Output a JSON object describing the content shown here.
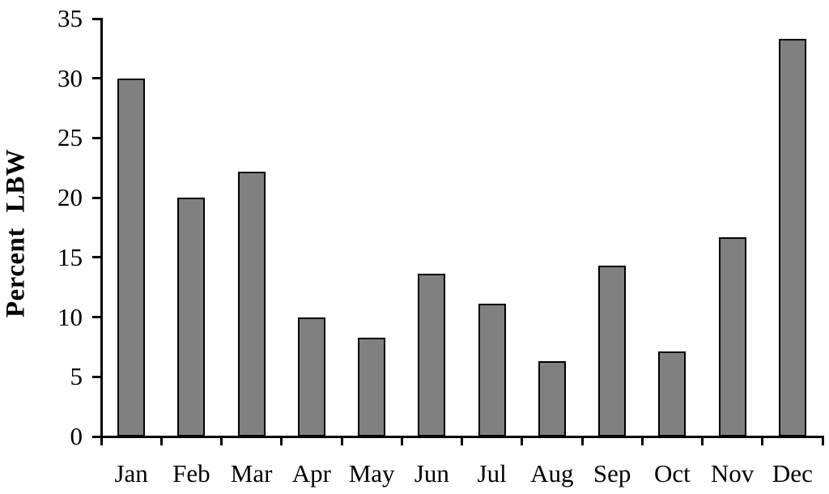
{
  "figure": {
    "background": "#ffffff"
  },
  "chart_data": {
    "type": "bar",
    "title": "",
    "xlabel": "",
    "ylabel": "Percent LBW",
    "categories": [
      "Jan",
      "Feb",
      "Mar",
      "Apr",
      "May",
      "Jun",
      "Jul",
      "Aug",
      "Sep",
      "Oct",
      "Nov",
      "Dec"
    ],
    "values": [
      30,
      20,
      22.2,
      10,
      8.3,
      13.6,
      11.1,
      6.3,
      14.3,
      7.1,
      16.7,
      33.3
    ],
    "ylim": [
      0,
      35
    ],
    "yticks": [
      0,
      5,
      10,
      15,
      20,
      25,
      30,
      35
    ],
    "grid": false,
    "legend": false,
    "colors": {
      "bar_fill": "#808080",
      "bar_border": "#000000",
      "axis": "#000000",
      "text": "#000000"
    }
  }
}
